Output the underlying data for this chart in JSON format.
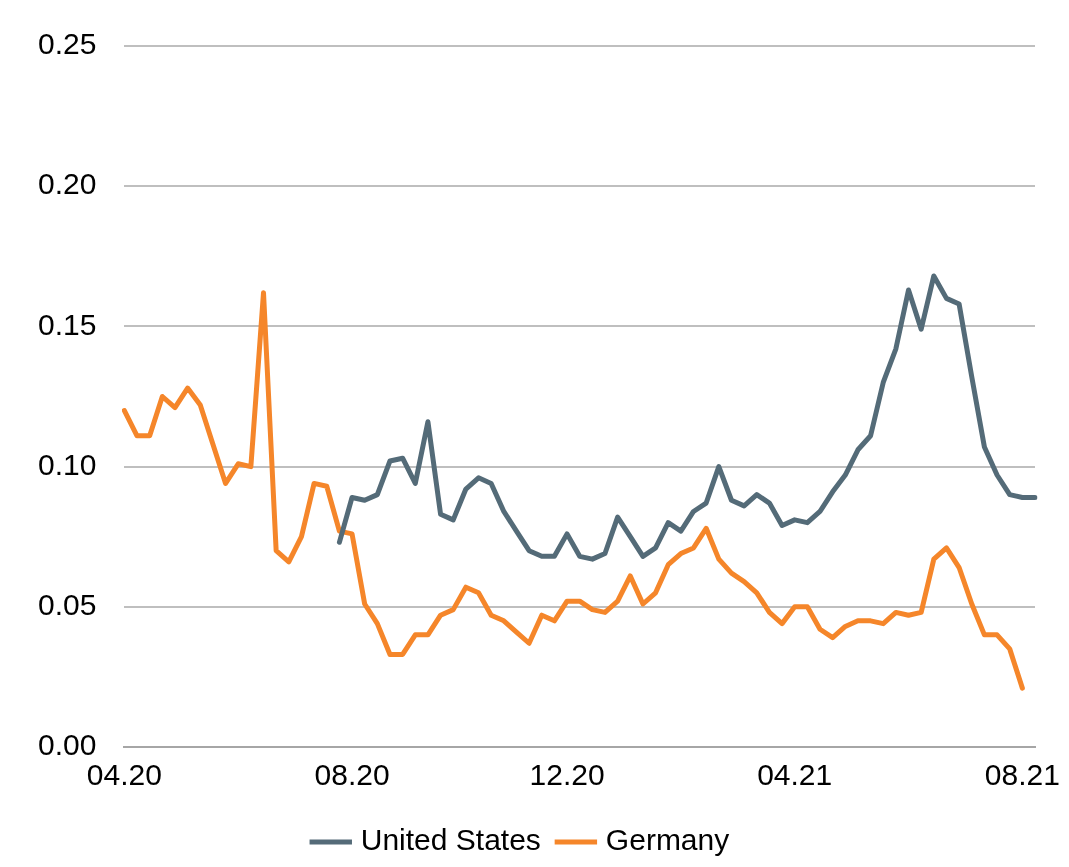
{
  "chart_data": {
    "type": "line",
    "categories": [
      "04.20",
      null,
      null,
      null,
      null,
      null,
      null,
      null,
      null,
      null,
      null,
      null,
      null,
      null,
      null,
      null,
      null,
      null,
      "08.20",
      null,
      null,
      null,
      null,
      null,
      null,
      null,
      null,
      null,
      null,
      null,
      null,
      null,
      null,
      null,
      null,
      "12.20",
      null,
      null,
      null,
      null,
      null,
      null,
      null,
      null,
      null,
      null,
      null,
      null,
      null,
      null,
      null,
      null,
      null,
      "04.21",
      null,
      null,
      null,
      null,
      null,
      null,
      null,
      null,
      null,
      null,
      null,
      null,
      null,
      null,
      null,
      null,
      null,
      "08.21",
      null
    ],
    "series": [
      {
        "name": "United States",
        "color": "#546b78",
        "values": [
          null,
          null,
          null,
          null,
          null,
          null,
          null,
          null,
          null,
          null,
          null,
          null,
          null,
          null,
          null,
          null,
          null,
          0.073,
          0.089,
          0.088,
          0.09,
          0.102,
          0.103,
          0.094,
          0.116,
          0.083,
          0.081,
          0.092,
          0.096,
          0.094,
          0.084,
          0.077,
          0.07,
          0.068,
          0.068,
          0.076,
          0.068,
          0.067,
          0.069,
          0.082,
          0.075,
          0.068,
          0.071,
          0.08,
          0.077,
          0.084,
          0.087,
          0.1,
          0.088,
          0.086,
          0.09,
          0.087,
          0.079,
          0.081,
          0.08,
          0.084,
          0.091,
          0.097,
          0.106,
          0.111,
          0.13,
          0.142,
          0.163,
          0.149,
          0.168,
          0.16,
          0.158,
          0.132,
          0.107,
          0.097,
          0.09,
          0.089,
          0.089
        ]
      },
      {
        "name": "Germany",
        "color": "#f5862a",
        "values": [
          0.12,
          0.111,
          0.111,
          0.125,
          0.121,
          0.128,
          0.122,
          0.108,
          0.094,
          0.101,
          0.1,
          0.162,
          0.07,
          0.066,
          0.075,
          0.094,
          0.093,
          0.077,
          0.076,
          0.051,
          0.044,
          0.033,
          0.033,
          0.04,
          0.04,
          0.047,
          0.049,
          0.057,
          0.055,
          0.047,
          0.045,
          0.041,
          0.037,
          0.047,
          0.045,
          0.052,
          0.052,
          0.049,
          0.048,
          0.052,
          0.061,
          0.051,
          0.055,
          0.065,
          0.069,
          0.071,
          0.078,
          0.067,
          0.062,
          0.059,
          0.055,
          0.048,
          0.044,
          0.05,
          0.05,
          0.042,
          0.039,
          0.043,
          0.045,
          0.045,
          0.044,
          0.048,
          0.047,
          0.048,
          0.067,
          0.071,
          0.064,
          0.051,
          0.04,
          0.04,
          0.035,
          0.021,
          null
        ]
      }
    ],
    "ylim": [
      0,
      0.25
    ],
    "yticks": [
      {
        "value": 0,
        "label": "0.00"
      },
      {
        "value": 0.05,
        "label": "0.05"
      },
      {
        "value": 0.1,
        "label": "0.10"
      },
      {
        "value": 0.15,
        "label": "0.15"
      },
      {
        "value": 0.2,
        "label": "0.20"
      },
      {
        "value": 0.25,
        "label": "0.25"
      }
    ],
    "grid": "y",
    "legend": "bottom",
    "marker": "none",
    "line_style": "solid"
  }
}
